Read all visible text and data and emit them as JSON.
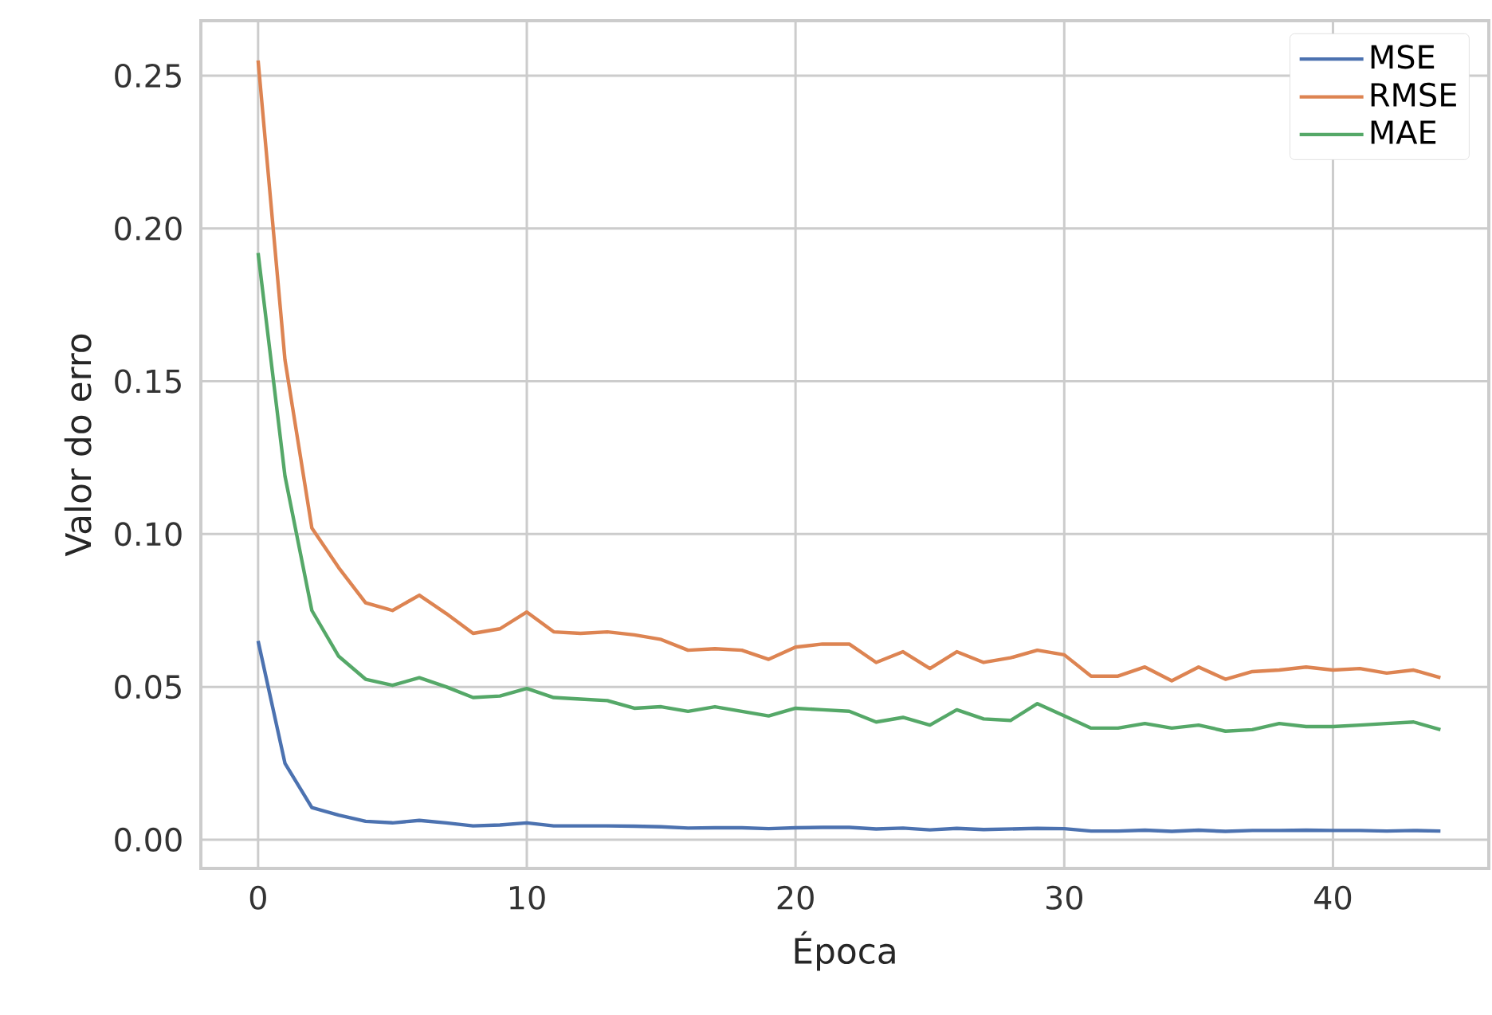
{
  "chart_data": {
    "type": "line",
    "xlabel": "Época",
    "ylabel": "Valor do erro",
    "x": [
      0,
      1,
      2,
      3,
      4,
      5,
      6,
      7,
      8,
      9,
      10,
      11,
      12,
      13,
      14,
      15,
      16,
      17,
      18,
      19,
      20,
      21,
      22,
      23,
      24,
      25,
      26,
      27,
      28,
      29,
      30,
      31,
      32,
      33,
      34,
      35,
      36,
      37,
      38,
      39,
      40,
      41,
      42,
      43,
      44
    ],
    "series": [
      {
        "name": "MSE",
        "color": "#4c72b0",
        "values": [
          0.065,
          0.025,
          0.0105,
          0.008,
          0.006,
          0.0055,
          0.0063,
          0.0055,
          0.0045,
          0.0048,
          0.0055,
          0.0045,
          0.0045,
          0.0045,
          0.0044,
          0.0042,
          0.0038,
          0.0039,
          0.0039,
          0.0036,
          0.0039,
          0.004,
          0.004,
          0.0035,
          0.0038,
          0.0032,
          0.0037,
          0.0033,
          0.0035,
          0.0037,
          0.0036,
          0.0028,
          0.0028,
          0.0031,
          0.0027,
          0.0031,
          0.0027,
          0.003,
          0.003,
          0.0031,
          0.003,
          0.003,
          0.0028,
          0.003,
          0.0028
        ]
      },
      {
        "name": "RMSE",
        "color": "#dd8452",
        "values": [
          0.255,
          0.157,
          0.102,
          0.089,
          0.0775,
          0.075,
          0.08,
          0.074,
          0.0675,
          0.069,
          0.0745,
          0.068,
          0.0675,
          0.068,
          0.067,
          0.0655,
          0.062,
          0.0625,
          0.062,
          0.059,
          0.063,
          0.064,
          0.064,
          0.058,
          0.0615,
          0.056,
          0.0615,
          0.058,
          0.0595,
          0.062,
          0.0605,
          0.0535,
          0.0535,
          0.0565,
          0.052,
          0.0565,
          0.0525,
          0.055,
          0.0555,
          0.0565,
          0.0555,
          0.056,
          0.0545,
          0.0555,
          0.053
        ]
      },
      {
        "name": "MAE",
        "color": "#55a868",
        "values": [
          0.192,
          0.119,
          0.075,
          0.06,
          0.0525,
          0.0505,
          0.053,
          0.05,
          0.0465,
          0.047,
          0.0495,
          0.0465,
          0.046,
          0.0455,
          0.043,
          0.0435,
          0.042,
          0.0435,
          0.042,
          0.0405,
          0.043,
          0.0425,
          0.042,
          0.0385,
          0.04,
          0.0375,
          0.0425,
          0.0395,
          0.039,
          0.0445,
          0.0405,
          0.0365,
          0.0365,
          0.038,
          0.0365,
          0.0375,
          0.0355,
          0.036,
          0.038,
          0.037,
          0.037,
          0.0375,
          0.038,
          0.0385,
          0.036
        ]
      }
    ],
    "xlim": [
      -2.13,
      45.8
    ],
    "ylim": [
      -0.0094,
      0.268
    ],
    "xticks": [
      0,
      10,
      20,
      30,
      40
    ],
    "yticks": [
      {
        "value": 0,
        "label": "0.00"
      },
      {
        "value": 0.05,
        "label": "0.05"
      },
      {
        "value": 0.1,
        "label": "0.10"
      },
      {
        "value": 0.15,
        "label": "0.15"
      },
      {
        "value": 0.2,
        "label": "0.20"
      },
      {
        "value": 0.25,
        "label": "0.25"
      }
    ],
    "grid": true,
    "legend": "top right",
    "marker": "none",
    "line_style": "solid"
  }
}
